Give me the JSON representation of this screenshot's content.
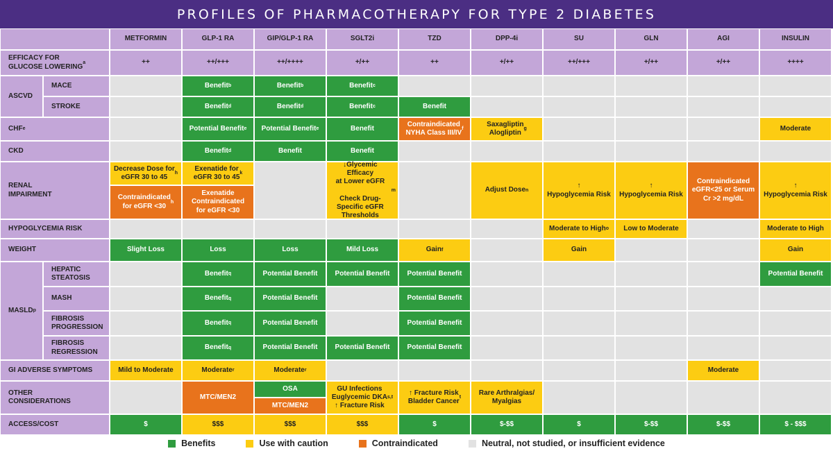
{
  "title": "PROFILES OF PHARMACOTHERAPY FOR TYPE 2 DIABETES",
  "colors": {
    "header_bg": "#4b2e83",
    "label_purple": "#c3a6d8",
    "benefit_green": "#2f9c3f",
    "caution_yellow": "#fccc12",
    "contraindicated_orange": "#e8731c",
    "neutral_gray": "#e2e2e2"
  },
  "columns": [
    "METFORMIN",
    "GLP-1 RA",
    "GIP/GLP-1 RA",
    "SGLT2i",
    "TZD",
    "DPP-4i",
    "SU",
    "GLN",
    "AGI",
    "INSULIN"
  ],
  "row_labels": {
    "efficacy": "EFFICACY FOR\nGLUCOSE LOWERING",
    "efficacy_sup": "a",
    "ascvd": "ASCVD",
    "mace": "MACE",
    "stroke": "STROKE",
    "chf": "CHF",
    "chf_sup": "e",
    "ckd": "CKD",
    "renal": "RENAL\nIMPAIRMENT",
    "hypo": "HYPOGLYCEMIA RISK",
    "weight": "WEIGHT",
    "masld": "MASLD",
    "masld_sup": "p",
    "hepatic": "HEPATIC\nSTEATOSIS",
    "mash": "MASH",
    "fib_prog": "FIBROSIS\nPROGRESSION",
    "fib_reg": "FIBROSIS\nREGRESSION",
    "gi": "GI ADVERSE SYMPTOMS",
    "other": "OTHER\nCONSIDERATIONS",
    "access": "ACCESS/COST"
  },
  "cells": {
    "efficacy": [
      "++",
      "++/+++",
      "++/++++",
      "+/++",
      "++",
      "+/++",
      "++/+++",
      "+/++",
      "+/++",
      "++++"
    ],
    "mace": [
      {
        "col": 1,
        "text": "Benefit",
        "sup": "b",
        "type": "green"
      },
      {
        "col": 2,
        "text": "Benefit",
        "sup": "b",
        "type": "green"
      },
      {
        "col": 3,
        "text": "Benefit",
        "sup": "c",
        "type": "green"
      }
    ],
    "stroke": [
      {
        "col": 1,
        "text": "Benefit",
        "sup": "d",
        "type": "green"
      },
      {
        "col": 2,
        "text": "Benefit",
        "sup": "d",
        "type": "green"
      },
      {
        "col": 3,
        "text": "Benefit",
        "sup": "c",
        "type": "green"
      },
      {
        "col": 4,
        "text": "Benefit",
        "sup": "",
        "type": "green"
      }
    ],
    "chf": [
      {
        "col": 1,
        "text": "Potential Benefit",
        "sup": "e",
        "type": "green"
      },
      {
        "col": 2,
        "text": "Potential Benefit",
        "sup": "e",
        "type": "green"
      },
      {
        "col": 3,
        "text": "Benefit",
        "sup": "",
        "type": "green"
      },
      {
        "col": 4,
        "text": "Contraindicated\nNYHA Class III/IV",
        "sup": "f",
        "type": "orange"
      },
      {
        "col": 5,
        "text": "Saxagliptin\nAlogliptin",
        "sup": "g",
        "type": "yellow"
      },
      {
        "col": 9,
        "text": "Moderate",
        "sup": "",
        "type": "yellow"
      }
    ],
    "ckd": [
      {
        "col": 1,
        "text": "Benefit",
        "sup": "d",
        "type": "green"
      },
      {
        "col": 2,
        "text": "Benefit",
        "sup": "",
        "type": "green"
      },
      {
        "col": 3,
        "text": "Benefit",
        "sup": "",
        "type": "green"
      }
    ],
    "renal_top": [
      {
        "col": 0,
        "text": "Decrease Dose for\neGFR 30 to 45",
        "sup": "h",
        "type": "yellow"
      },
      {
        "col": 1,
        "text": "Exenatide for\neGFR 30 to 45",
        "sup": "k",
        "type": "yellow"
      }
    ],
    "renal_bottom": [
      {
        "col": 0,
        "text": "Contraindicated\nfor eGFR <30",
        "sup": "h",
        "type": "orange"
      },
      {
        "col": 1,
        "text": "Exenatide\nContraindicated\nfor eGFR <30",
        "sup": "",
        "type": "orange"
      }
    ],
    "renal_full": [
      {
        "col": 3,
        "text": "↓Glycemic Efficacy\nat Lower eGFR\n\nCheck Drug-\nSpecific eGFR\nThresholds",
        "sup": "m",
        "type": "yellow"
      },
      {
        "col": 5,
        "text": "Adjust Dose",
        "sup": "n",
        "type": "yellow"
      },
      {
        "col": 6,
        "text": "↑\nHypoglycemia Risk",
        "sup": "",
        "type": "yellow"
      },
      {
        "col": 7,
        "text": "↑\nHypoglycemia Risk",
        "sup": "",
        "type": "yellow"
      },
      {
        "col": 8,
        "text": "Contraindicated\neGFR<25 or Serum\nCr >2 mg/dL",
        "sup": "",
        "type": "orange"
      },
      {
        "col": 9,
        "text": "↑\nHypoglycemia Risk",
        "sup": "",
        "type": "yellow"
      }
    ],
    "hypo": [
      {
        "col": 6,
        "text": "Moderate to High",
        "sup": "o",
        "type": "yellow"
      },
      {
        "col": 7,
        "text": "Low to Moderate",
        "sup": "",
        "type": "yellow"
      },
      {
        "col": 9,
        "text": "Moderate to High",
        "sup": "",
        "type": "yellow"
      }
    ],
    "weight": [
      {
        "col": 0,
        "text": "Slight Loss",
        "sup": "",
        "type": "green"
      },
      {
        "col": 1,
        "text": "Loss",
        "sup": "",
        "type": "green"
      },
      {
        "col": 2,
        "text": "Loss",
        "sup": "",
        "type": "green"
      },
      {
        "col": 3,
        "text": "Mild Loss",
        "sup": "",
        "type": "green"
      },
      {
        "col": 4,
        "text": "Gain",
        "sup": "f",
        "type": "yellow"
      },
      {
        "col": 6,
        "text": "Gain",
        "sup": "",
        "type": "yellow"
      },
      {
        "col": 9,
        "text": "Gain",
        "sup": "",
        "type": "yellow"
      }
    ],
    "hepatic": [
      {
        "col": 1,
        "text": "Benefit",
        "sup": "q",
        "type": "green"
      },
      {
        "col": 2,
        "text": "Potential Benefit",
        "sup": "",
        "type": "green"
      },
      {
        "col": 3,
        "text": "Potential Benefit",
        "sup": "",
        "type": "green"
      },
      {
        "col": 4,
        "text": "Potential Benefit",
        "sup": "",
        "type": "green"
      },
      {
        "col": 9,
        "text": "Potential Benefit",
        "sup": "",
        "type": "green"
      }
    ],
    "mash": [
      {
        "col": 1,
        "text": "Benefit",
        "sup": "q",
        "type": "green"
      },
      {
        "col": 2,
        "text": "Potential Benefit",
        "sup": "",
        "type": "green"
      },
      {
        "col": 4,
        "text": "Potential Benefit",
        "sup": "",
        "type": "green"
      }
    ],
    "fib_prog": [
      {
        "col": 1,
        "text": "Benefit",
        "sup": "q",
        "type": "green"
      },
      {
        "col": 2,
        "text": "Potential Benefit",
        "sup": "",
        "type": "green"
      },
      {
        "col": 4,
        "text": "Potential Benefit",
        "sup": "",
        "type": "green"
      }
    ],
    "fib_reg": [
      {
        "col": 1,
        "text": "Benefit",
        "sup": "q",
        "type": "green"
      },
      {
        "col": 2,
        "text": "Potential Benefit",
        "sup": "",
        "type": "green"
      },
      {
        "col": 3,
        "text": "Potential Benefit",
        "sup": "",
        "type": "green"
      },
      {
        "col": 4,
        "text": "Potential Benefit",
        "sup": "",
        "type": "green"
      }
    ],
    "gi": [
      {
        "col": 0,
        "text": "Mild to Moderate",
        "sup": "",
        "type": "yellow"
      },
      {
        "col": 1,
        "text": "Moderate",
        "sup": "r",
        "type": "yellow"
      },
      {
        "col": 2,
        "text": "Moderate",
        "sup": "r",
        "type": "yellow"
      },
      {
        "col": 8,
        "text": "Moderate",
        "sup": "",
        "type": "yellow"
      }
    ],
    "other_full": [
      {
        "col": 1,
        "text": "MTC/MEN2",
        "sup": "",
        "type": "orange"
      },
      {
        "col": 3,
        "text": "GU Infections\nEuglycemic DKA\n↑ Fracture Risk",
        "sup": "",
        "type": "yellow",
        "sups": [
          "s",
          "t"
        ]
      },
      {
        "col": 4,
        "text": "↑ Fracture Risk\nBladder Cancer",
        "sup": "",
        "type": "yellow",
        "sups": [
          "t"
        ]
      },
      {
        "col": 5,
        "text": "Rare Arthralgias/\nMyalgias",
        "sup": "",
        "type": "yellow"
      }
    ],
    "other_gip_top": {
      "col": 2,
      "text": "OSA",
      "type": "green"
    },
    "other_gip_bottom": {
      "col": 2,
      "text": "MTC/MEN2",
      "type": "orange"
    },
    "access": [
      "$",
      "$$$",
      "$$$",
      "$$$",
      "$",
      "$-$$",
      "$",
      "$-$$",
      "$-$$",
      "$ - $$$"
    ]
  },
  "legend": [
    {
      "label": "Benefits",
      "color": "#2f9c3f"
    },
    {
      "label": "Use with caution",
      "color": "#fccc12"
    },
    {
      "label": "Contraindicated",
      "color": "#e8731c"
    },
    {
      "label": "Neutral, not studied, or insufficient evidence",
      "color": "#e2e2e2"
    }
  ]
}
